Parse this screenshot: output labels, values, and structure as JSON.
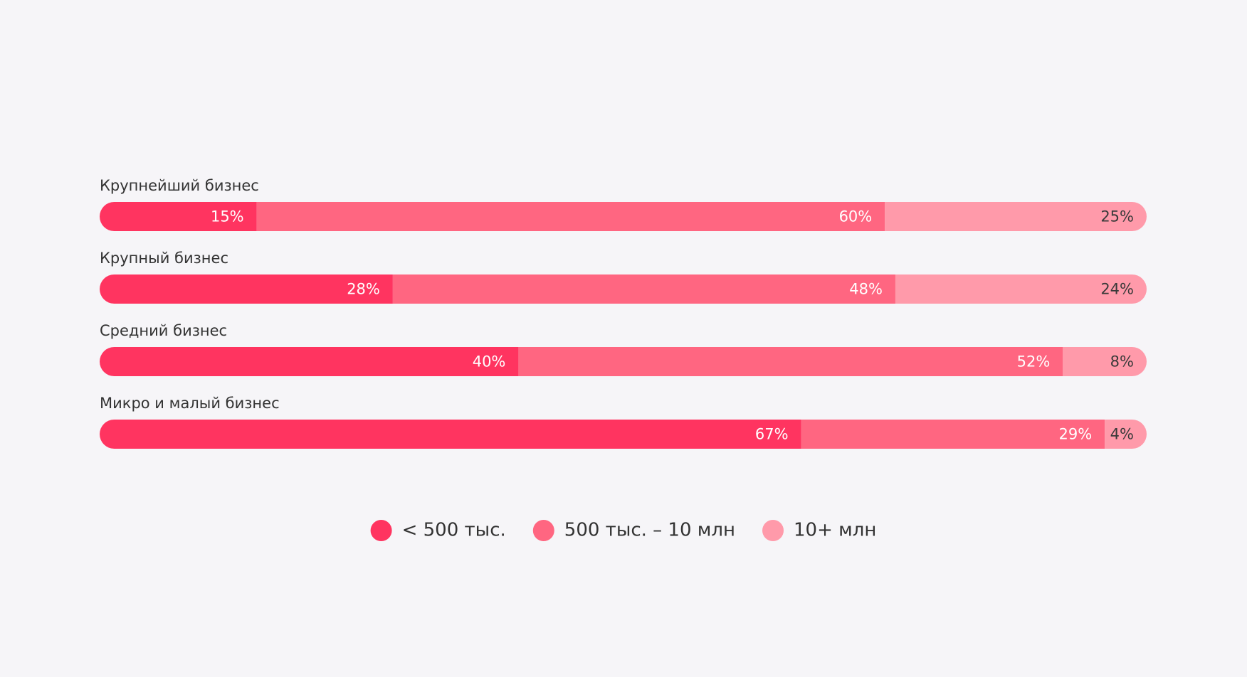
{
  "chart_data": {
    "type": "stacked-bar-horizontal",
    "categories": [
      "Крупнейший бизнес",
      "Крупный бизнес",
      "Средний бизнес",
      "Микро и малый бизнес"
    ],
    "series": [
      {
        "name": "< 500 тыс.",
        "color": "#ff3460",
        "values": [
          15,
          28,
          40,
          67
        ],
        "value_labels": [
          "15%",
          "28%",
          "40%",
          "67%"
        ]
      },
      {
        "name": "500 тыс. – 10 млн",
        "color": "#ff6681",
        "values": [
          60,
          48,
          52,
          29
        ],
        "value_labels": [
          "60%",
          "48%",
          "52%",
          "29%"
        ]
      },
      {
        "name": "10+ млн",
        "color": "#ff9aaa",
        "values": [
          25,
          24,
          8,
          4
        ],
        "value_labels": [
          "25%",
          "24%",
          "8%",
          "4%"
        ]
      }
    ],
    "legend": "bottom"
  }
}
